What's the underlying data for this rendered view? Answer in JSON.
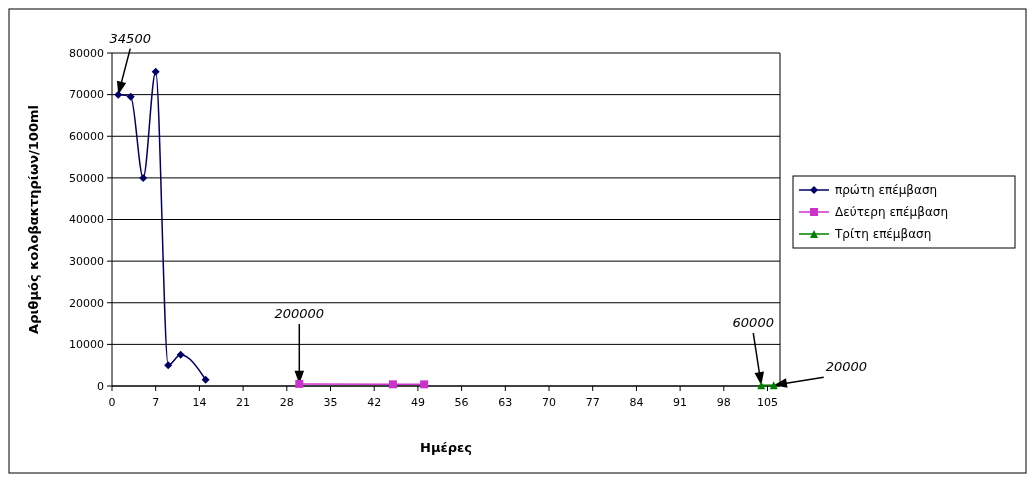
{
  "chart_data": {
    "type": "line",
    "xlabel": "Ημέρες",
    "ylabel": "Αριθμός κολοβακτηρίων/100ml",
    "xlim": [
      0,
      107
    ],
    "xticks": [
      0,
      7,
      14,
      21,
      28,
      35,
      42,
      49,
      56,
      63,
      70,
      77,
      84,
      91,
      98,
      105
    ],
    "ylim": [
      0,
      80000
    ],
    "yticks": [
      0,
      10000,
      20000,
      30000,
      40000,
      50000,
      60000,
      70000,
      80000
    ],
    "grid": "y",
    "legend": "right",
    "series": [
      {
        "name": "πρώτη επέμβαση",
        "color": "#000066",
        "marker": "diamond",
        "x": [
          1,
          3,
          5,
          7,
          9,
          11,
          15
        ],
        "values": [
          70000,
          69500,
          50000,
          75500,
          5000,
          7500,
          1500
        ]
      },
      {
        "name": "Δεύτερη επέμβαση",
        "color": "#cc33cc",
        "marker": "square",
        "x": [
          30,
          45,
          50
        ],
        "values": [
          500,
          400,
          400
        ]
      },
      {
        "name": "Τρίτη επέμβαση",
        "color": "#008000",
        "marker": "triangle",
        "x": [
          104,
          106
        ],
        "values": [
          200,
          200
        ]
      }
    ],
    "annotations": [
      {
        "text": "34500",
        "x": 1,
        "y": 70000
      },
      {
        "text": "200000",
        "x": 30,
        "y": 500
      },
      {
        "text": "60000",
        "x": 104,
        "y": 200
      },
      {
        "text": "20000",
        "x": 106,
        "y": 200
      }
    ]
  }
}
